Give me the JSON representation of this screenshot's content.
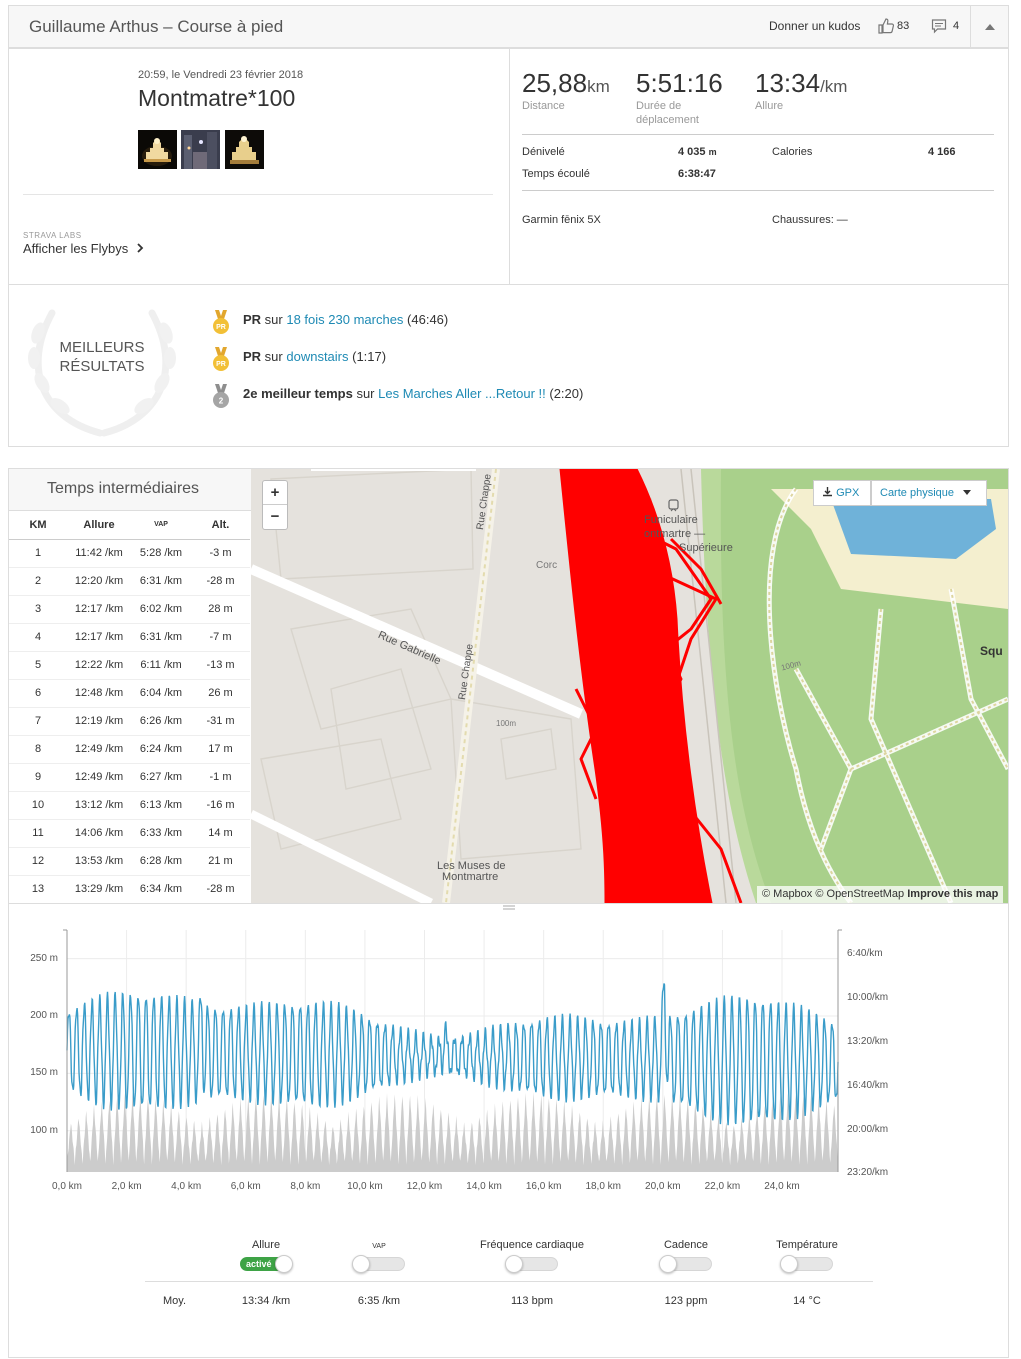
{
  "header": {
    "title": "Guillaume Arthus – Course à pied",
    "kudos_label": "Donner un kudos",
    "kudos_count": "83",
    "comment_count": "4"
  },
  "activity": {
    "datetime": "20:59, le Vendredi 23 février 2018",
    "name": "Montmatre*100",
    "photos": [
      "photo-1",
      "photo-2",
      "photo-3"
    ],
    "labs_label": "STRAVA LABS",
    "flyby_label": "Afficher les Flybys"
  },
  "stats": {
    "distance": {
      "value": "25,88",
      "unit": "km",
      "label": "Distance"
    },
    "moving_time": {
      "value": "5:51:16",
      "label_1": "Durée de",
      "label_2": "déplacement"
    },
    "pace": {
      "value": "13:34",
      "unit": "/km",
      "label": "Allure"
    },
    "elevation": {
      "label": "Dénivelé",
      "value": "4 035",
      "unit": "m"
    },
    "calories": {
      "label": "Calories",
      "value": "4 166"
    },
    "elapsed": {
      "label": "Temps écoulé",
      "value": "6:38:47"
    },
    "device": "Garmin fēnix 5X",
    "shoes": "Chaussures: —"
  },
  "best_results": {
    "label_1": "MEILLEURS",
    "label_2": "RÉSULTATS",
    "items": [
      {
        "medal": "PR",
        "bold": "PR",
        "pre": " sur ",
        "link": "18 fois 230 marches",
        "post": " (46:46)"
      },
      {
        "medal": "PR",
        "bold": "PR",
        "pre": " sur ",
        "link": "downstairs",
        "post": " (1:17)"
      },
      {
        "medal": "2",
        "bold": "2e meilleur temps",
        "pre": " sur ",
        "link": "Les Marches Aller ...Retour !!",
        "post": " (2:20)"
      }
    ]
  },
  "splits": {
    "title": "Temps intermédiaires",
    "headers": [
      "KM",
      "Allure",
      "VAP",
      "Alt."
    ],
    "rows": [
      [
        "1",
        "11:42 /km",
        "5:28 /km",
        "-3  m"
      ],
      [
        "2",
        "12:20 /km",
        "6:31 /km",
        "-28  m"
      ],
      [
        "3",
        "12:17 /km",
        "6:02 /km",
        "28  m"
      ],
      [
        "4",
        "12:17 /km",
        "6:31 /km",
        "-7  m"
      ],
      [
        "5",
        "12:22 /km",
        "6:11 /km",
        "-13  m"
      ],
      [
        "6",
        "12:48 /km",
        "6:04 /km",
        "26  m"
      ],
      [
        "7",
        "12:19 /km",
        "6:26 /km",
        "-31  m"
      ],
      [
        "8",
        "12:49 /km",
        "6:24 /km",
        "17  m"
      ],
      [
        "9",
        "12:49 /km",
        "6:27 /km",
        "-1  m"
      ],
      [
        "10",
        "13:12 /km",
        "6:13 /km",
        "-16  m"
      ],
      [
        "11",
        "14:06 /km",
        "6:33 /km",
        "14  m"
      ],
      [
        "12",
        "13:53 /km",
        "6:28 /km",
        "21  m"
      ],
      [
        "13",
        "13:29 /km",
        "6:34 /km",
        "-28  m"
      ]
    ]
  },
  "map": {
    "zoom_in": "+",
    "zoom_out": "−",
    "gpx_label": "GPX",
    "layer_label": "Carte physique",
    "labels": {
      "funiculaire_1": "Funiculaire",
      "funiculaire_2": "ontmartre —",
      "funiculaire_3": "Supérieure",
      "corce": "Corc",
      "rue_chappe_1": "Rue Chappe",
      "rue_chappe_2": "Rue Chappe",
      "rue_gabrielle": "Rue Gabrielle",
      "alt_100_a": "100m",
      "alt_100_b": "100m",
      "muses_1": "Les Muses de",
      "muses_2": "Montmartre",
      "square": "Squ"
    },
    "attribution": "© Mapbox © OpenStreetMap",
    "improve": "Improve this map",
    "route_color": "#ff0000"
  },
  "chart_data": {
    "type": "line",
    "x_unit": "km",
    "xlim": [
      0,
      25.88
    ],
    "x_ticks": [
      "0,0 km",
      "2,0 km",
      "4,0 km",
      "6,0 km",
      "8,0 km",
      "10,0 km",
      "12,0 km",
      "14,0 km",
      "16,0 km",
      "18,0 km",
      "20,0 km",
      "22,0 km",
      "24,0 km"
    ],
    "y_left_ticks": [
      "250 m",
      "200 m",
      "150 m",
      "100 m"
    ],
    "y_left_values": [
      250,
      200,
      150,
      100
    ],
    "y_left_lim": [
      64,
      275
    ],
    "y_right_ticks": [
      "6:40/km",
      "10:00/km",
      "13:20/km",
      "16:40/km",
      "20:00/km",
      "23:20/km"
    ],
    "y_right_lim": [
      "6:40/km",
      "23:20/km"
    ],
    "series": [
      {
        "kind": "elevation",
        "color": "#cccccc",
        "min": 72,
        "max": 132,
        "cycles": 100
      },
      {
        "kind": "pace",
        "color": "#3a9cc9",
        "approx_pace_range": [
          "10:00/km",
          "20:00/km"
        ],
        "cycles": 100
      }
    ],
    "grid": true
  },
  "toggles": {
    "items": [
      {
        "label": "Allure",
        "active": true,
        "active_label": "activé",
        "avg": "13:34 /km"
      },
      {
        "label": "VAP",
        "active": false,
        "avg": "6:35 /km"
      },
      {
        "label": "Fréquence cardiaque",
        "active": false,
        "avg": "113  bpm"
      },
      {
        "label": "Cadence",
        "active": false,
        "avg": "123  ppm"
      },
      {
        "label": "Température",
        "active": false,
        "avg": "14  °C"
      }
    ],
    "avg_label": "Moy.",
    "active_color": "#3ea346"
  }
}
